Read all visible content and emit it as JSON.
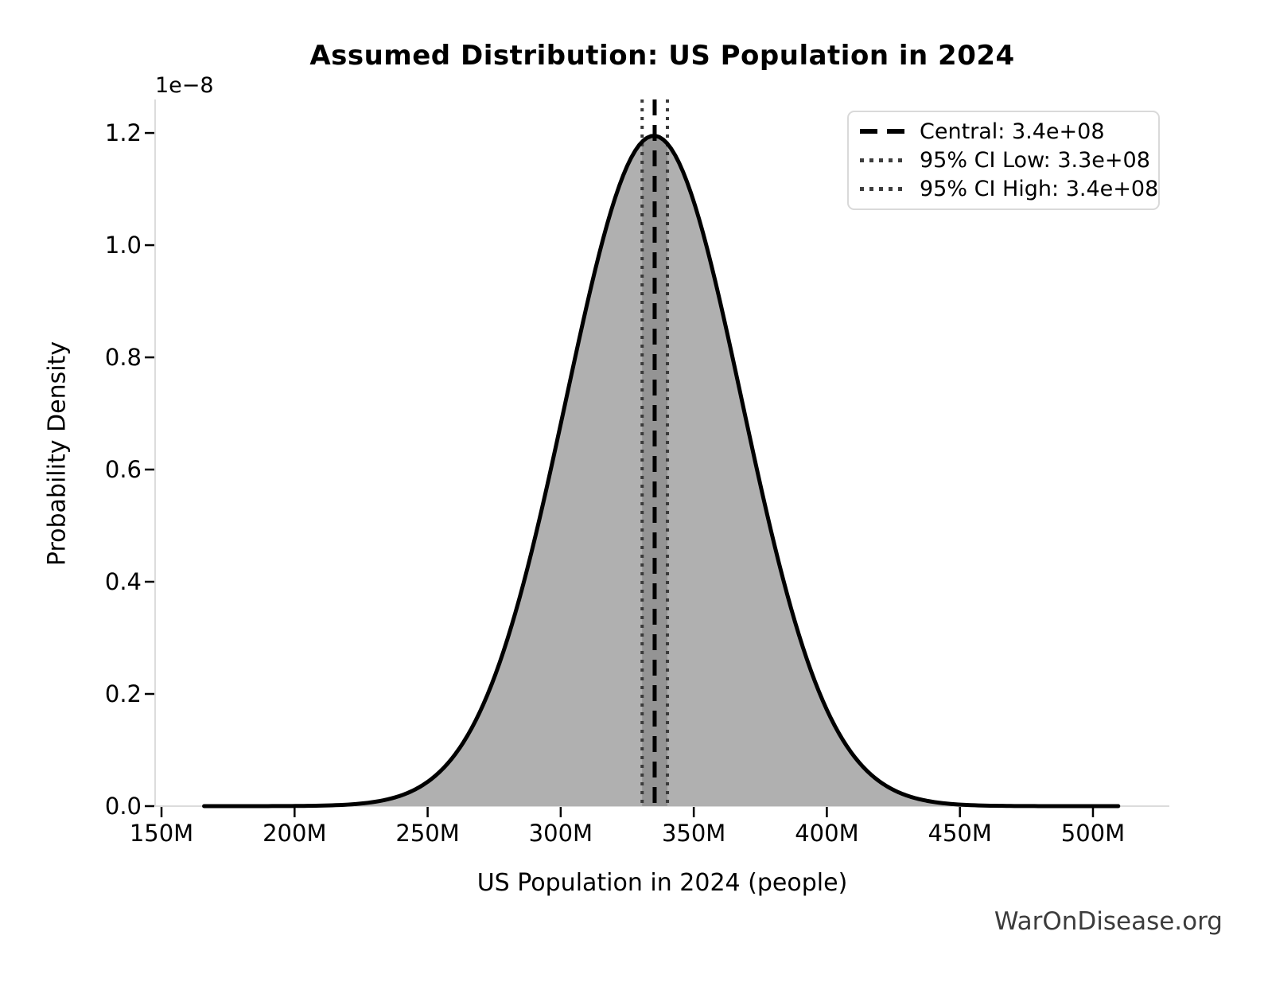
{
  "watermark": "WarOnDisease.org",
  "chart_data": {
    "type": "area",
    "title": "Assumed Distribution: US Population in 2024",
    "xlabel": "US Population in 2024 (people)",
    "ylabel": "Probability Density",
    "y_axis_offset_label": "1e−8",
    "x_tick_values_millions": [
      150,
      200,
      250,
      300,
      350,
      400,
      450,
      500
    ],
    "x_tick_labels": [
      "150M",
      "200M",
      "250M",
      "300M",
      "350M",
      "400M",
      "450M",
      "500M"
    ],
    "y_tick_values_1e8": [
      0.0,
      0.2,
      0.4,
      0.6,
      0.8,
      1.0,
      1.2
    ],
    "y_tick_labels": [
      "0.0",
      "0.2",
      "0.4",
      "0.6",
      "0.8",
      "1.0",
      "1.2"
    ],
    "xlim_millions": [
      147.6,
      528.7
    ],
    "ylim_1e8": [
      0,
      1.2597
    ],
    "grid": false,
    "curve": {
      "shape": "gaussian",
      "mean_millions": 335,
      "sigma_millions": 33,
      "peak_density_1e8": 1.195,
      "draw_start_millions": 166,
      "draw_end_millions": 510
    },
    "lines": {
      "central": {
        "value_millions": 335.3,
        "style": "dashed",
        "color": "#000000"
      },
      "ci_low": {
        "value_millions": 330.6,
        "style": "dotted",
        "color": "#3a3a3a"
      },
      "ci_high": {
        "value_millions": 340.1,
        "style": "dotted",
        "color": "#3a3a3a"
      }
    },
    "legend": {
      "position": "upper right",
      "items": [
        {
          "label": "Central: 3.4e+08",
          "style": "dashed",
          "color": "#000000"
        },
        {
          "label": "95% CI Low: 3.3e+08",
          "style": "dotted",
          "color": "#3d3d3d"
        },
        {
          "label": "95% CI High: 3.4e+08",
          "style": "dotted",
          "color": "#3d3d3d"
        }
      ]
    },
    "colors": {
      "fill": "#b0b0b0",
      "ci_band_fill": "#949494",
      "curve_stroke": "#000000",
      "spine": "#dcdcdc",
      "tick": "#000000"
    }
  }
}
